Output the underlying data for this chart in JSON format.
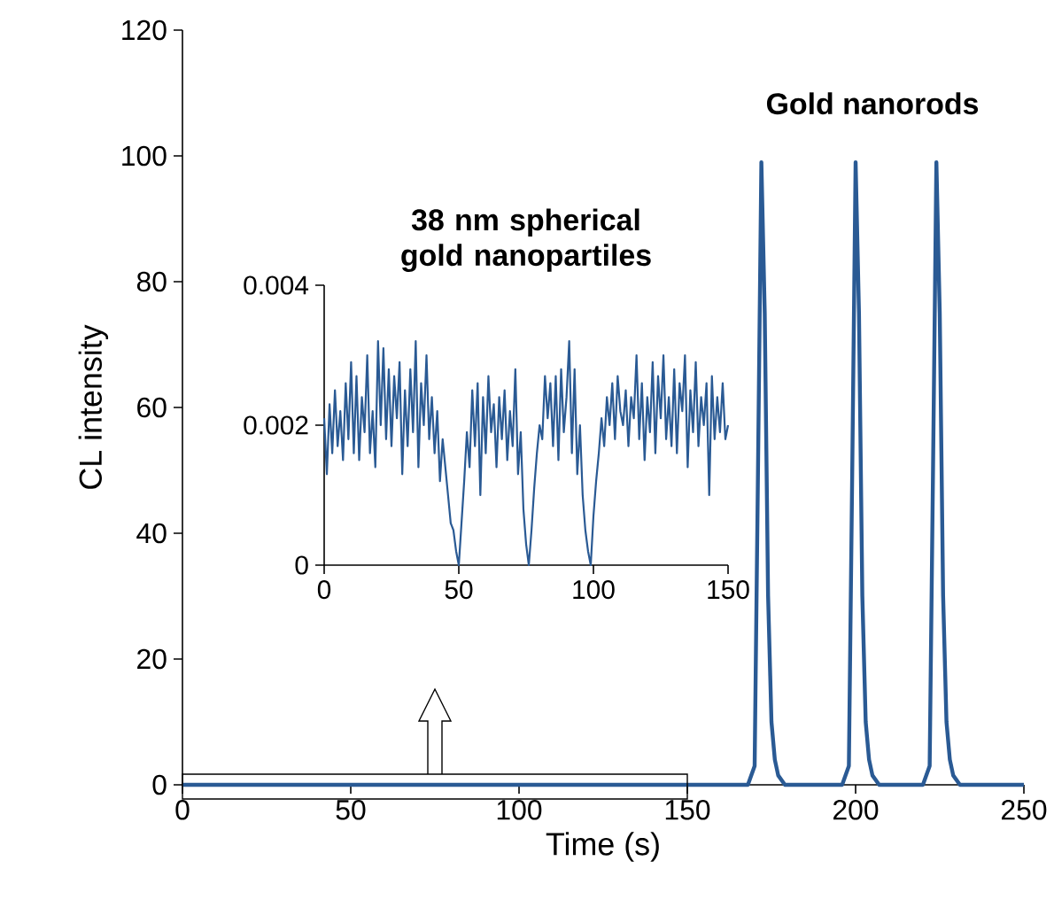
{
  "chart_data": [
    {
      "type": "line",
      "xlabel": "Time (s)",
      "ylabel": "CL intensity",
      "xlim": [
        0,
        250
      ],
      "ylim": [
        0,
        120
      ],
      "xticks": [
        0,
        50,
        100,
        150,
        200,
        250
      ],
      "yticks": [
        0,
        20,
        40,
        60,
        80,
        100,
        120
      ],
      "annotations": [
        "Gold nanorods"
      ],
      "series": [
        {
          "color": "#2a5a94",
          "x": [
            0,
            168,
            170,
            171,
            172,
            173,
            174,
            175,
            176,
            177,
            179,
            196,
            198,
            199,
            200,
            201,
            202,
            203,
            204,
            205,
            207,
            220,
            222,
            223,
            224,
            225,
            226,
            227,
            228,
            229,
            231,
            250
          ],
          "values": [
            0,
            0,
            3,
            50,
            99,
            75,
            30,
            10,
            4,
            1.5,
            0,
            0,
            3,
            50,
            99,
            75,
            30,
            10,
            4,
            1.5,
            0,
            0,
            3,
            50,
            99,
            75,
            30,
            10,
            4,
            1.5,
            0,
            0
          ]
        }
      ]
    },
    {
      "type": "line",
      "title": "38 nm spherical gold nanopartiles",
      "xlim": [
        0,
        150
      ],
      "ylim": [
        0,
        0.004
      ],
      "xticks": [
        0,
        50,
        100,
        150
      ],
      "yticks": [
        0,
        0.002,
        0.004
      ],
      "series": [
        {
          "color": "#2a5a94",
          "values": [
            0.0021,
            0.0013,
            0.0023,
            0.0016,
            0.0025,
            0.0017,
            0.0022,
            0.0015,
            0.0026,
            0.0018,
            0.0029,
            0.0016,
            0.0027,
            0.0015,
            0.0024,
            0.0019,
            0.003,
            0.0016,
            0.0022,
            0.0014,
            0.0032,
            0.002,
            0.0031,
            0.0018,
            0.0028,
            0.0017,
            0.0027,
            0.0021,
            0.0029,
            0.0013,
            0.0025,
            0.0017,
            0.0028,
            0.0019,
            0.0032,
            0.0014,
            0.0026,
            0.002,
            0.003,
            0.0018,
            0.0024,
            0.0016,
            0.0022,
            0.0012,
            0.0018,
            0.0014,
            0.001,
            0.0006,
            0.0005,
            0.0002,
            0,
            0.0006,
            0.0012,
            0.0019,
            0.0014,
            0.0025,
            0.0017,
            0.0026,
            0.001,
            0.0024,
            0.0016,
            0.0027,
            0.0019,
            0.0023,
            0.0014,
            0.0024,
            0.0018,
            0.0025,
            0.0015,
            0.0022,
            0.0017,
            0.0028,
            0.0013,
            0.0019,
            0.0008,
            0.0003,
            0,
            0.0005,
            0.0011,
            0.0016,
            0.002,
            0.0018,
            0.0027,
            0.0021,
            0.0026,
            0.0017,
            0.0027,
            0.0015,
            0.0028,
            0.0019,
            0.0024,
            0.0032,
            0.0016,
            0.0028,
            0.0013,
            0.002,
            0.001,
            0.0005,
            0.0002,
            0,
            0.0007,
            0.0012,
            0.0016,
            0.0021,
            0.0017,
            0.0024,
            0.002,
            0.0026,
            0.0018,
            0.0027,
            0.0022,
            0.002,
            0.0025,
            0.0017,
            0.0024,
            0.0021,
            0.003,
            0.0018,
            0.0026,
            0.0015,
            0.0024,
            0.0019,
            0.0029,
            0.0016,
            0.0027,
            0.0021,
            0.003,
            0.0018,
            0.0024,
            0.0017,
            0.0028,
            0.0016,
            0.0026,
            0.0022,
            0.003,
            0.0014,
            0.0025,
            0.0019,
            0.0029,
            0.0017,
            0.0024,
            0.002,
            0.0026,
            0.001,
            0.0027,
            0.0018,
            0.0024,
            0.0019,
            0.0026,
            0.0018,
            0.002
          ],
          "x": [
            0,
            1,
            2,
            3,
            4,
            5,
            6,
            7,
            8,
            9,
            10,
            11,
            12,
            13,
            14,
            15,
            16,
            17,
            18,
            19,
            20,
            21,
            22,
            23,
            24,
            25,
            26,
            27,
            28,
            29,
            30,
            31,
            32,
            33,
            34,
            35,
            36,
            37,
            38,
            39,
            40,
            41,
            42,
            43,
            44,
            45,
            46,
            47,
            48,
            49,
            50,
            51,
            52,
            53,
            54,
            55,
            56,
            57,
            58,
            59,
            60,
            61,
            62,
            63,
            64,
            65,
            66,
            67,
            68,
            69,
            70,
            71,
            72,
            73,
            74,
            75,
            76,
            77,
            78,
            79,
            80,
            81,
            82,
            83,
            84,
            85,
            86,
            87,
            88,
            89,
            90,
            91,
            92,
            93,
            94,
            95,
            96,
            97,
            98,
            99,
            100,
            101,
            102,
            103,
            104,
            105,
            106,
            107,
            108,
            109,
            110,
            111,
            112,
            113,
            114,
            115,
            116,
            117,
            118,
            119,
            120,
            121,
            122,
            123,
            124,
            125,
            126,
            127,
            128,
            129,
            130,
            131,
            132,
            133,
            134,
            135,
            136,
            137,
            138,
            139,
            140,
            141,
            142,
            143,
            144,
            145,
            146,
            147,
            148,
            149,
            150
          ]
        }
      ]
    }
  ]
}
